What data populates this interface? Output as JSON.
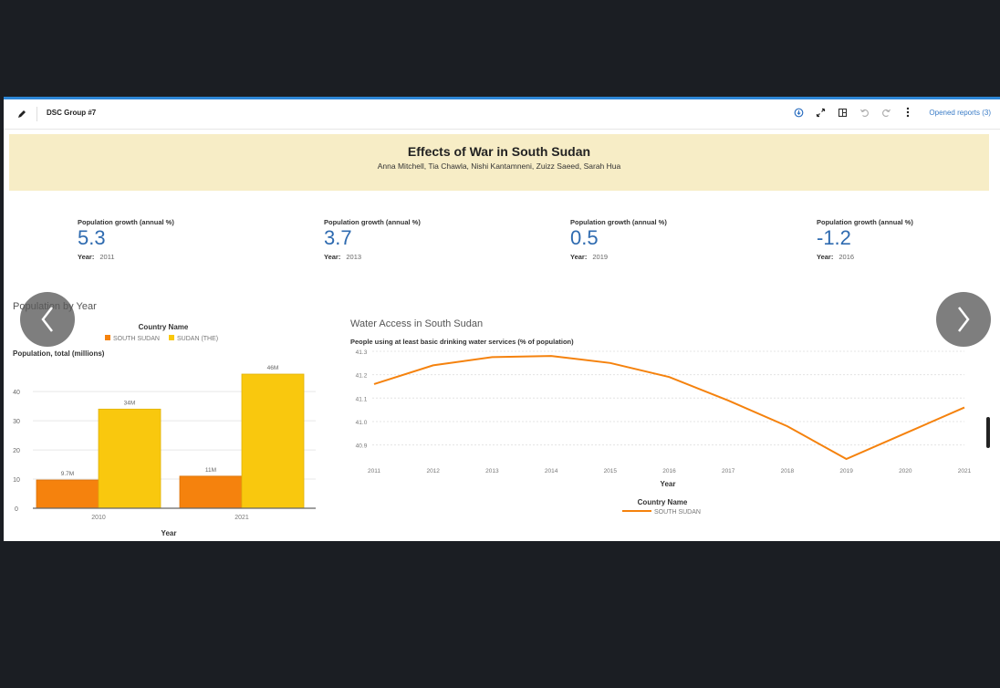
{
  "toolbar": {
    "report_title": "DSC Group #7",
    "opened_reports": "Opened reports (3)"
  },
  "banner": {
    "title": "Effects of War in South Sudan",
    "authors": "Anna Mitchell, Tia Chawla, Nishi Kantamneni, Zuizz Saeed, Sarah Hua"
  },
  "kpis": [
    {
      "label": "Population growth (annual %)",
      "value": "5.3",
      "year_label": "Year:",
      "year": "2011"
    },
    {
      "label": "Population growth (annual %)",
      "value": "3.7",
      "year_label": "Year:",
      "year": "2013"
    },
    {
      "label": "Population growth (annual %)",
      "value": "0.5",
      "year_label": "Year:",
      "year": "2019"
    },
    {
      "label": "Population growth (annual %)",
      "value": "-1.2",
      "year_label": "Year:",
      "year": "2016"
    }
  ],
  "colors": {
    "accent": "#2d86d6",
    "south_sudan": "#f5820d",
    "sudan": "#f9c80e",
    "kpi_value": "#2f6bb0",
    "banner": "#f7edc6"
  },
  "chart_data": [
    {
      "type": "bar",
      "panel_title": "Population by Year",
      "legend_title": "Country Name",
      "ylabel": "Population, total (millions)",
      "xlabel": "Year",
      "categories": [
        "2010",
        "2021"
      ],
      "series": [
        {
          "name": "SOUTH SUDAN",
          "values": [
            9.7,
            11
          ],
          "labels": [
            "9.7M",
            "11M"
          ]
        },
        {
          "name": "SUDAN (THE)",
          "values": [
            34,
            46
          ],
          "labels": [
            "34M",
            "46M"
          ]
        }
      ],
      "yticks": [
        0,
        10,
        20,
        30,
        40
      ],
      "ylim": [
        0,
        46
      ]
    },
    {
      "type": "line",
      "panel_title": "Water Access in South Sudan",
      "ylabel": "People using at least basic drinking water services (% of population)",
      "xlabel": "Year",
      "legend_title": "Country Name",
      "x": [
        2011,
        2012,
        2013,
        2014,
        2015,
        2016,
        2017,
        2018,
        2019,
        2020,
        2021
      ],
      "series": [
        {
          "name": "SOUTH SUDAN",
          "values": [
            41.16,
            41.24,
            41.275,
            41.28,
            41.25,
            41.19,
            41.09,
            40.98,
            40.84,
            40.95,
            41.06
          ]
        }
      ],
      "yticks": [
        "40.9",
        "41.0",
        "41.1",
        "41.2",
        "41.3"
      ],
      "ylim": [
        40.84,
        41.3
      ]
    }
  ],
  "nav": {
    "prev_glyph": "‹",
    "next_glyph": "›"
  }
}
